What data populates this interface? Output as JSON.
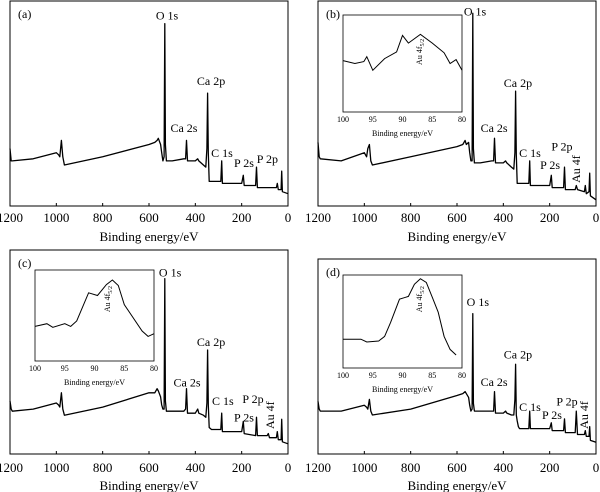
{
  "chart_data": [
    {
      "type": "line",
      "panel_label": "(a)",
      "xlabel": "Binding energy/eV",
      "xlim": [
        1200,
        0
      ],
      "x_reversed": true,
      "xticks": [
        1200,
        1000,
        800,
        600,
        400,
        200,
        0
      ],
      "ylabel": "",
      "y_units": "arbitrary intensity",
      "points": [
        [
          1200,
          28
        ],
        [
          1195,
          22
        ],
        [
          1190,
          22
        ],
        [
          1100,
          23
        ],
        [
          1000,
          26
        ],
        [
          990,
          25
        ],
        [
          985,
          24
        ],
        [
          978,
          32
        ],
        [
          972,
          24
        ],
        [
          965,
          20
        ],
        [
          800,
          24
        ],
        [
          600,
          30
        ],
        [
          575,
          31
        ],
        [
          565,
          32
        ],
        [
          560,
          33
        ],
        [
          550,
          30
        ],
        [
          545,
          26
        ],
        [
          540,
          22
        ],
        [
          535,
          24
        ],
        [
          532,
          89
        ],
        [
          529,
          30
        ],
        [
          525,
          22
        ],
        [
          500,
          22
        ],
        [
          450,
          23
        ],
        [
          442,
          23
        ],
        [
          438,
          32
        ],
        [
          434,
          22
        ],
        [
          400,
          22
        ],
        [
          390,
          23
        ],
        [
          385,
          22
        ],
        [
          365,
          20
        ],
        [
          355,
          19
        ],
        [
          350,
          28
        ],
        [
          347,
          55
        ],
        [
          344,
          26
        ],
        [
          340,
          12
        ],
        [
          330,
          12
        ],
        [
          290,
          12
        ],
        [
          286,
          22
        ],
        [
          283,
          11
        ],
        [
          200,
          11
        ],
        [
          193,
          15
        ],
        [
          189,
          10
        ],
        [
          140,
          10
        ],
        [
          136,
          19
        ],
        [
          132,
          9
        ],
        [
          90,
          9
        ],
        [
          85,
          9
        ],
        [
          80,
          9
        ],
        [
          50,
          9
        ],
        [
          46,
          11
        ],
        [
          42,
          8
        ],
        [
          30,
          8
        ],
        [
          27,
          17
        ],
        [
          24,
          7
        ],
        [
          0,
          6
        ]
      ],
      "annotations": [
        {
          "text": "O 1s",
          "x": 522,
          "y": 91
        },
        {
          "text": "Ca 2p",
          "x": 332,
          "y": 59
        },
        {
          "text": "Ca 2s",
          "x": 449,
          "y": 36
        },
        {
          "text": "C 1s",
          "x": 285,
          "y": 24
        },
        {
          "text": "P 2s",
          "x": 190,
          "y": 19
        },
        {
          "text": "P 2p",
          "x": 89,
          "y": 21
        }
      ]
    },
    {
      "type": "line",
      "panel_label": "(b)",
      "xlabel": "Binding energy/eV",
      "xlim": [
        1200,
        0
      ],
      "x_reversed": true,
      "xticks": [
        1200,
        1000,
        800,
        600,
        400,
        200,
        0
      ],
      "ylabel": "",
      "y_units": "arbitrary intensity",
      "points": [
        [
          1200,
          31
        ],
        [
          1195,
          24
        ],
        [
          1190,
          23
        ],
        [
          1100,
          22
        ],
        [
          1000,
          26
        ],
        [
          990,
          24
        ],
        [
          985,
          28
        ],
        [
          978,
          30
        ],
        [
          972,
          22
        ],
        [
          965,
          20
        ],
        [
          800,
          24
        ],
        [
          600,
          29
        ],
        [
          575,
          30
        ],
        [
          565,
          32
        ],
        [
          560,
          30
        ],
        [
          550,
          31
        ],
        [
          545,
          26
        ],
        [
          540,
          22
        ],
        [
          535,
          22
        ],
        [
          532,
          94
        ],
        [
          529,
          28
        ],
        [
          525,
          21
        ],
        [
          500,
          21
        ],
        [
          450,
          22
        ],
        [
          442,
          22
        ],
        [
          438,
          33
        ],
        [
          434,
          21
        ],
        [
          400,
          21
        ],
        [
          390,
          22
        ],
        [
          385,
          21
        ],
        [
          365,
          19
        ],
        [
          355,
          18
        ],
        [
          350,
          26
        ],
        [
          347,
          56
        ],
        [
          344,
          25
        ],
        [
          340,
          11
        ],
        [
          330,
          11
        ],
        [
          290,
          11
        ],
        [
          286,
          22
        ],
        [
          283,
          10
        ],
        [
          200,
          10
        ],
        [
          193,
          15
        ],
        [
          189,
          9
        ],
        [
          140,
          9
        ],
        [
          136,
          19
        ],
        [
          132,
          8
        ],
        [
          90,
          8
        ],
        [
          85,
          10
        ],
        [
          80,
          8
        ],
        [
          50,
          7
        ],
        [
          46,
          10
        ],
        [
          42,
          6
        ],
        [
          30,
          7
        ],
        [
          27,
          16
        ],
        [
          24,
          5
        ],
        [
          0,
          3
        ]
      ],
      "annotations": [
        {
          "text": "O 1s",
          "x": 522,
          "y": 93
        },
        {
          "text": "Ca 2p",
          "x": 337,
          "y": 58
        },
        {
          "text": "Ca 2s",
          "x": 440,
          "y": 36
        },
        {
          "text": "C 1s",
          "x": 285,
          "y": 24
        },
        {
          "text": "P 2s",
          "x": 198,
          "y": 18
        },
        {
          "text": "P 2p",
          "x": 147,
          "y": 27
        },
        {
          "text": "Au 4f",
          "x": 86,
          "y": 18,
          "rotated": true
        }
      ],
      "inset": {
        "xlabel": "Binding energy/eV",
        "xlim": [
          100,
          80
        ],
        "xticks": [
          100,
          95,
          90,
          85,
          80
        ],
        "label": "Au 4f",
        "label_sub": "5/2",
        "label_x": 87.2,
        "label_y": 62,
        "points": [
          [
            100,
            53
          ],
          [
            98,
            50
          ],
          [
            96.5,
            52
          ],
          [
            96,
            57
          ],
          [
            95,
            43
          ],
          [
            93,
            55
          ],
          [
            91,
            62
          ],
          [
            90,
            79
          ],
          [
            89,
            71
          ],
          [
            87,
            80
          ],
          [
            85,
            71
          ],
          [
            83,
            61
          ],
          [
            82,
            50
          ],
          [
            81,
            54
          ],
          [
            80,
            43
          ]
        ]
      }
    },
    {
      "type": "line",
      "panel_label": "(c)",
      "xlabel": "Binding energy/eV",
      "xlim": [
        1200,
        0
      ],
      "x_reversed": true,
      "xticks": [
        1200,
        1000,
        800,
        600,
        400,
        200,
        0
      ],
      "ylabel": "",
      "y_units": "arbitrary intensity",
      "points": [
        [
          1200,
          26
        ],
        [
          1195,
          22
        ],
        [
          1190,
          21
        ],
        [
          1100,
          22
        ],
        [
          1000,
          25
        ],
        [
          990,
          24
        ],
        [
          985,
          23
        ],
        [
          978,
          30
        ],
        [
          972,
          22
        ],
        [
          965,
          19
        ],
        [
          800,
          23
        ],
        [
          600,
          30
        ],
        [
          575,
          30
        ],
        [
          565,
          32
        ],
        [
          560,
          31
        ],
        [
          550,
          28
        ],
        [
          545,
          24
        ],
        [
          540,
          22
        ],
        [
          535,
          22
        ],
        [
          532,
          86
        ],
        [
          529,
          26
        ],
        [
          525,
          21
        ],
        [
          500,
          21
        ],
        [
          450,
          21
        ],
        [
          442,
          22
        ],
        [
          438,
          32
        ],
        [
          434,
          20
        ],
        [
          400,
          20
        ],
        [
          390,
          22
        ],
        [
          385,
          20
        ],
        [
          365,
          19
        ],
        [
          355,
          18
        ],
        [
          350,
          25
        ],
        [
          347,
          51
        ],
        [
          344,
          24
        ],
        [
          340,
          13
        ],
        [
          330,
          12
        ],
        [
          290,
          12
        ],
        [
          286,
          20
        ],
        [
          283,
          11
        ],
        [
          200,
          11
        ],
        [
          193,
          16
        ],
        [
          189,
          10
        ],
        [
          140,
          9
        ],
        [
          136,
          18
        ],
        [
          132,
          9
        ],
        [
          90,
          9
        ],
        [
          85,
          10
        ],
        [
          80,
          8
        ],
        [
          50,
          8
        ],
        [
          46,
          11
        ],
        [
          42,
          7
        ],
        [
          30,
          7
        ],
        [
          27,
          17
        ],
        [
          24,
          6
        ],
        [
          0,
          5
        ]
      ],
      "annotations": [
        {
          "text": "O 1s",
          "x": 509,
          "y": 87
        },
        {
          "text": "Ca 2p",
          "x": 332,
          "y": 53
        },
        {
          "text": "Ca 2s",
          "x": 436,
          "y": 33
        },
        {
          "text": "C 1s",
          "x": 281,
          "y": 24
        },
        {
          "text": "P 2s",
          "x": 190,
          "y": 16
        },
        {
          "text": "P 2p",
          "x": 151,
          "y": 25
        },
        {
          "text": "Au 4f",
          "x": 78,
          "y": 19,
          "rotated": true
        }
      ],
      "inset": {
        "xlabel": "Binding energy/eV",
        "xlim": [
          100,
          80
        ],
        "xticks": [
          100,
          95,
          90,
          85,
          80
        ],
        "label": "Au 4f",
        "label_sub": "5/2",
        "label_x": 87.9,
        "label_y": 68,
        "points": [
          [
            100,
            38
          ],
          [
            98,
            41
          ],
          [
            97,
            37
          ],
          [
            95,
            41
          ],
          [
            94,
            38
          ],
          [
            93,
            44
          ],
          [
            91,
            75
          ],
          [
            89.5,
            72
          ],
          [
            88,
            84
          ],
          [
            87,
            89
          ],
          [
            86,
            83
          ],
          [
            85,
            62
          ],
          [
            82,
            33
          ],
          [
            81,
            27
          ],
          [
            80,
            30
          ]
        ]
      }
    },
    {
      "type": "line",
      "panel_label": "(d)",
      "xlabel": "Binding energy/eV",
      "xlim": [
        1200,
        0
      ],
      "x_reversed": true,
      "xticks": [
        1200,
        1000,
        800,
        600,
        400,
        200,
        0
      ],
      "ylabel": "",
      "y_units": "arbitrary intensity",
      "points": [
        [
          1200,
          27
        ],
        [
          1195,
          23
        ],
        [
          1190,
          22
        ],
        [
          1100,
          22
        ],
        [
          1000,
          25
        ],
        [
          990,
          24
        ],
        [
          985,
          23
        ],
        [
          978,
          28
        ],
        [
          972,
          22
        ],
        [
          965,
          20
        ],
        [
          800,
          23
        ],
        [
          600,
          30
        ],
        [
          575,
          31
        ],
        [
          565,
          32
        ],
        [
          560,
          31
        ],
        [
          550,
          29
        ],
        [
          545,
          25
        ],
        [
          540,
          22
        ],
        [
          535,
          23
        ],
        [
          532,
          72
        ],
        [
          529,
          26
        ],
        [
          525,
          22
        ],
        [
          500,
          22
        ],
        [
          450,
          22
        ],
        [
          442,
          22
        ],
        [
          438,
          32
        ],
        [
          434,
          21
        ],
        [
          400,
          21
        ],
        [
          390,
          22
        ],
        [
          385,
          21
        ],
        [
          365,
          20
        ],
        [
          355,
          20
        ],
        [
          350,
          28
        ],
        [
          347,
          46
        ],
        [
          344,
          20
        ],
        [
          340,
          17
        ],
        [
          335,
          14
        ],
        [
          330,
          13
        ],
        [
          290,
          13
        ],
        [
          286,
          22
        ],
        [
          283,
          13
        ],
        [
          200,
          13
        ],
        [
          193,
          16
        ],
        [
          189,
          12
        ],
        [
          140,
          12
        ],
        [
          136,
          18
        ],
        [
          132,
          11
        ],
        [
          90,
          11
        ],
        [
          85,
          22
        ],
        [
          80,
          10
        ],
        [
          50,
          10
        ],
        [
          46,
          12
        ],
        [
          42,
          9
        ],
        [
          30,
          9
        ],
        [
          27,
          14
        ],
        [
          24,
          7
        ],
        [
          0,
          6
        ]
      ],
      "annotations": [
        {
          "text": "O 1s",
          "x": 510,
          "y": 76
        },
        {
          "text": "Ca 2p",
          "x": 337,
          "y": 49
        },
        {
          "text": "Ca 2s",
          "x": 440,
          "y": 35
        },
        {
          "text": "C 1s",
          "x": 285,
          "y": 22
        },
        {
          "text": "P 2s",
          "x": 190,
          "y": 18
        },
        {
          "text": "P 2p",
          "x": 125,
          "y": 25
        },
        {
          "text": "Au 4f",
          "x": 52,
          "y": 20,
          "rotated": true
        }
      ],
      "inset": {
        "xlabel": "Binding energy/eV",
        "xlim": [
          100,
          80
        ],
        "xticks": [
          100,
          95,
          90,
          85,
          80
        ],
        "label": "Au 4f",
        "label_sub": "5/2",
        "label_x": 87.2,
        "label_y": 74,
        "points": [
          [
            100,
            31
          ],
          [
            97,
            31
          ],
          [
            96,
            28
          ],
          [
            94,
            29
          ],
          [
            93,
            34
          ],
          [
            92,
            49
          ],
          [
            90.5,
            74
          ],
          [
            89.5,
            76
          ],
          [
            89,
            77
          ],
          [
            88,
            90
          ],
          [
            87,
            96
          ],
          [
            86,
            92
          ],
          [
            85,
            76
          ],
          [
            84,
            60
          ],
          [
            83,
            34
          ],
          [
            82,
            20
          ],
          [
            81,
            14
          ]
        ]
      }
    }
  ]
}
